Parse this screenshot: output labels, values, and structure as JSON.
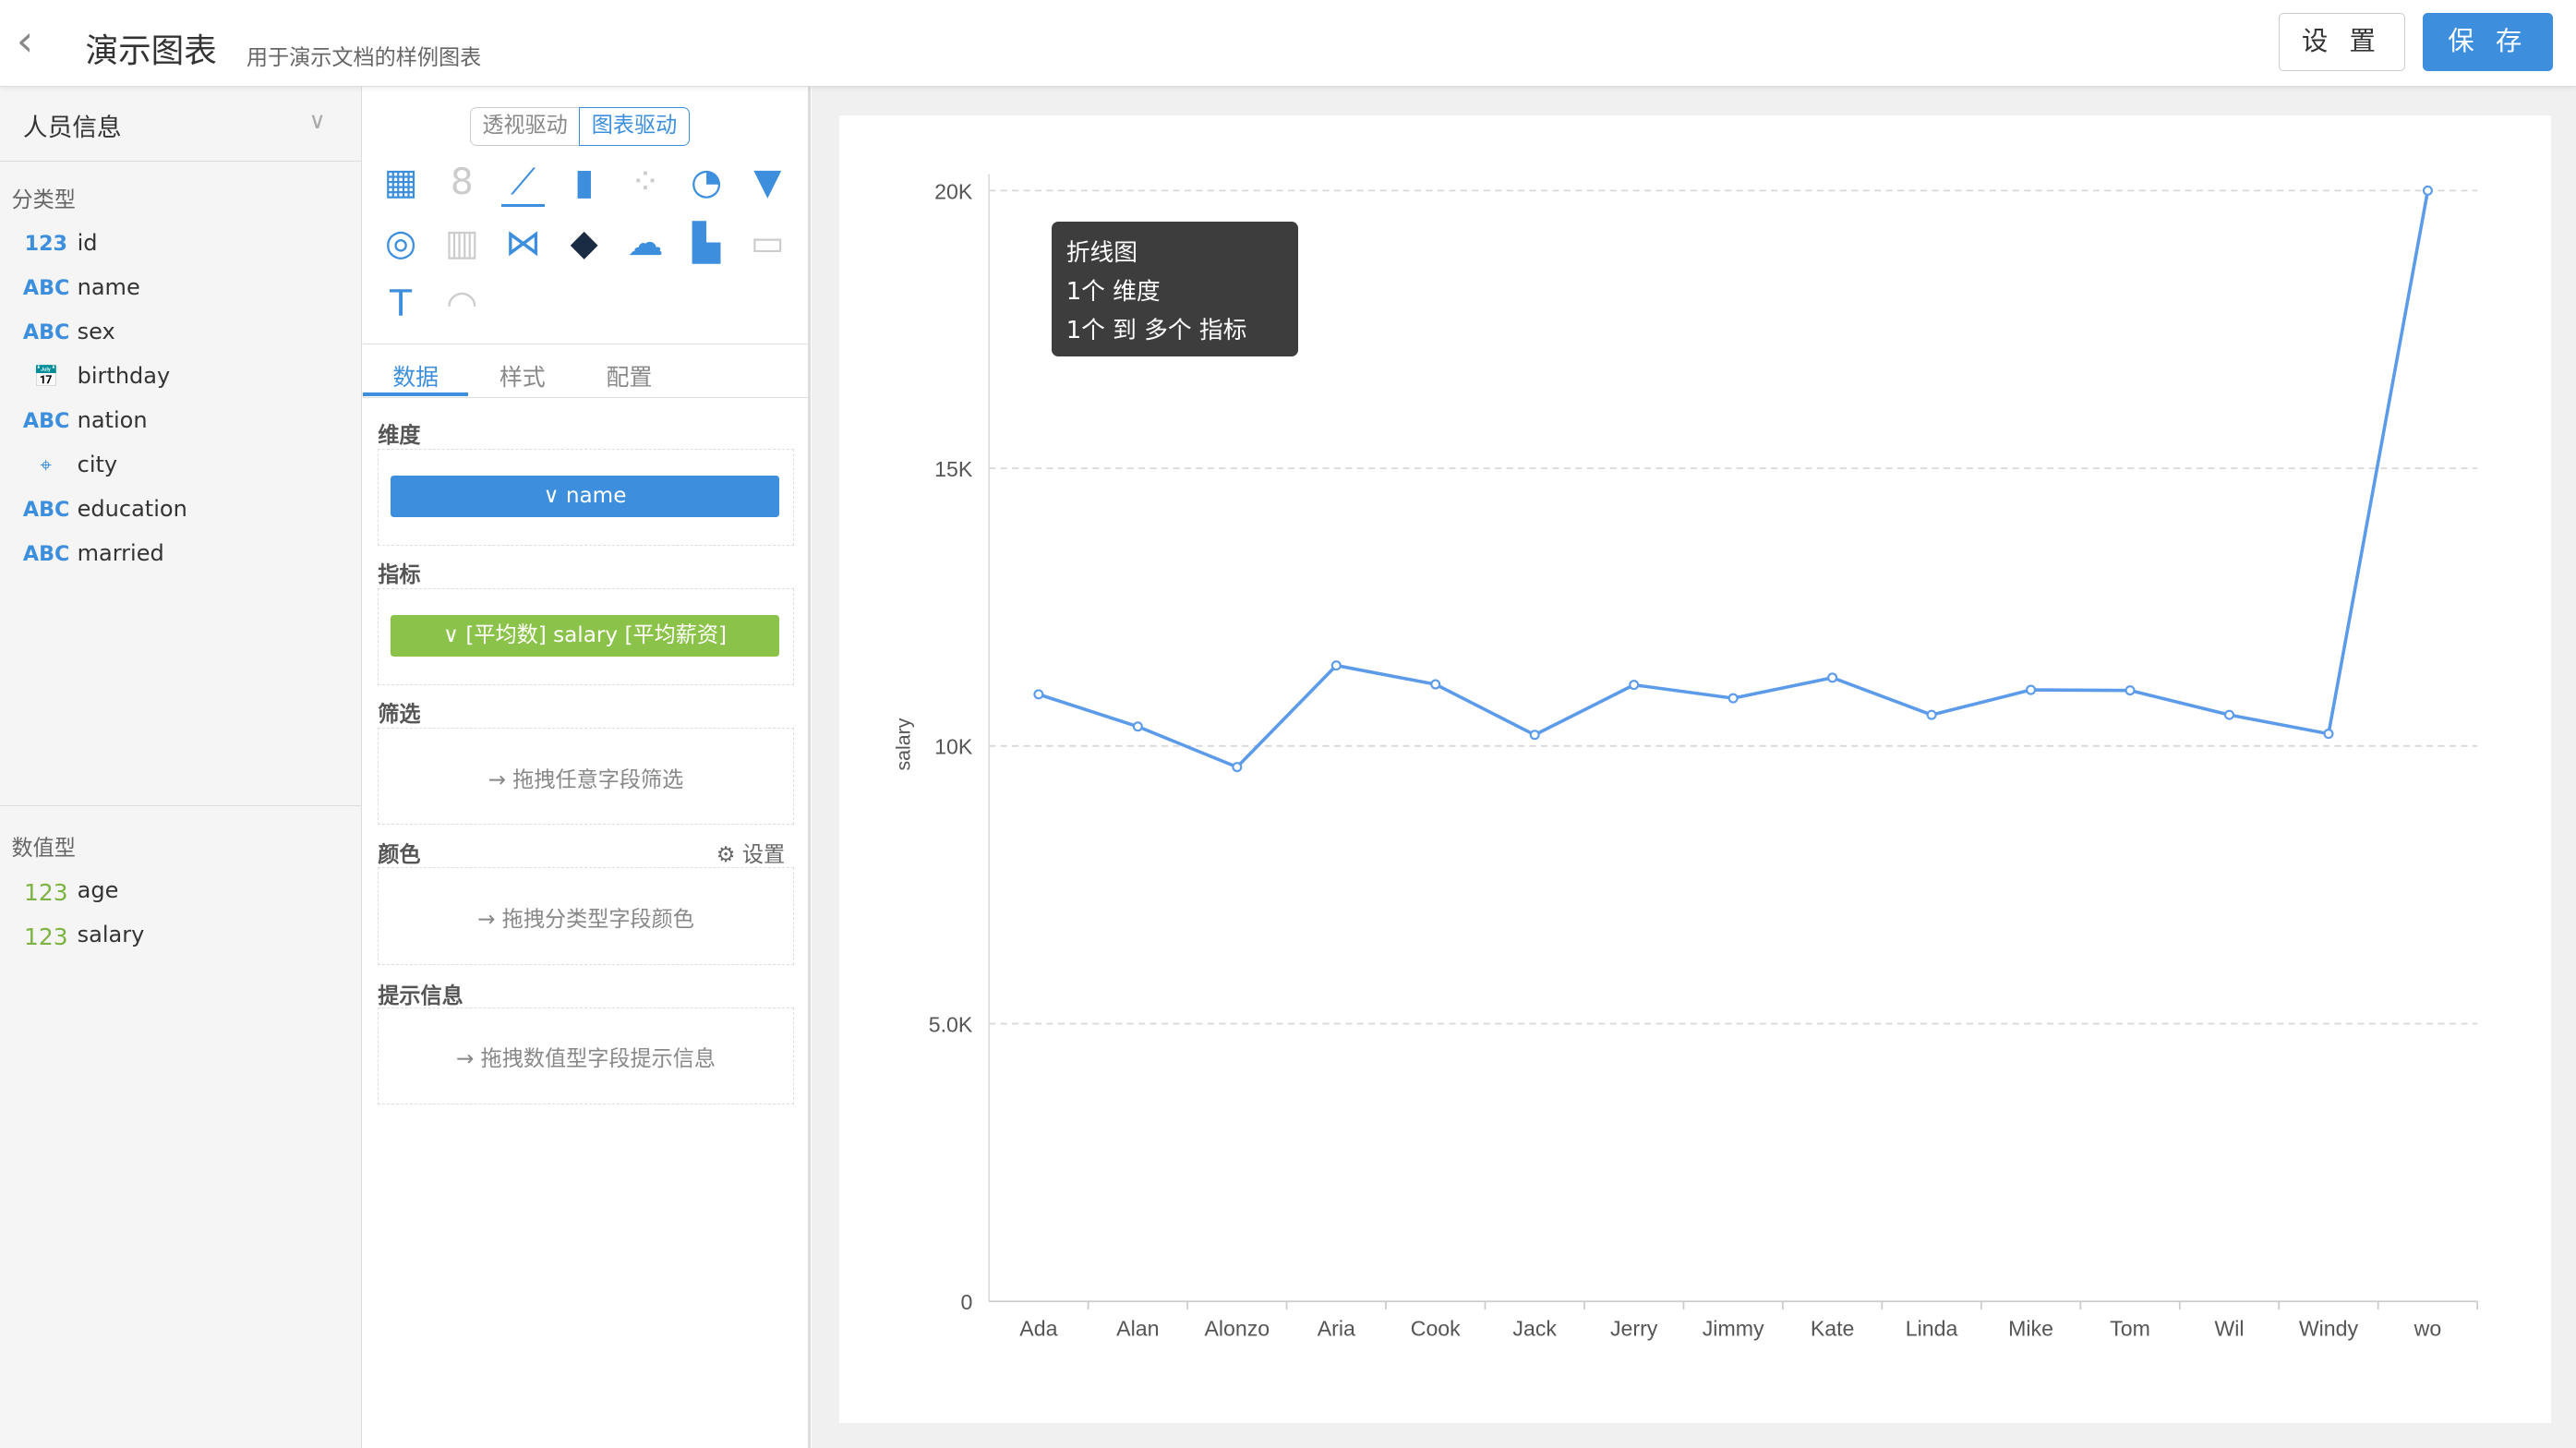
{
  "header": {
    "back_icon": "chevron-left-icon",
    "title": "演示图表",
    "subtitle": "用于演示文档的样例图表",
    "settings_label": "设 置",
    "save_label": "保 存"
  },
  "fields_panel": {
    "dataset": "人员信息",
    "categorical_title": "分类型",
    "categorical": [
      {
        "type": "123",
        "name": "id"
      },
      {
        "type": "ABC",
        "name": "name"
      },
      {
        "type": "ABC",
        "name": "sex"
      },
      {
        "type": "calendar-icon",
        "name": "birthday"
      },
      {
        "type": "ABC",
        "name": "nation"
      },
      {
        "type": "map-pin-icon",
        "name": "city"
      },
      {
        "type": "ABC",
        "name": "education"
      },
      {
        "type": "ABC",
        "name": "married"
      }
    ],
    "numeric_title": "数值型",
    "numeric": [
      {
        "type": "123",
        "name": "age"
      },
      {
        "type": "123",
        "name": "salary"
      }
    ]
  },
  "config_panel": {
    "mode_pivot": "透视驱动",
    "mode_chart": "图表驱动",
    "active_mode": "图表驱动",
    "chart_types": [
      "table",
      "number-card",
      "line",
      "bar",
      "scatter",
      "pie",
      "funnel",
      "radar",
      "heatmap",
      "parallel",
      "china-map",
      "word-cloud",
      "waterfall",
      "iframe",
      "text",
      "gauge"
    ],
    "selected_chart_type": "line",
    "tooltip": {
      "title": "折线图",
      "line1": "1个 维度",
      "line2": "1个 到 多个 指标"
    },
    "tabs": [
      "数据",
      "样式",
      "配置"
    ],
    "active_tab": "数据",
    "dimension_label": "维度",
    "dimension_value": "name",
    "metric_label": "指标",
    "metric_value": "[平均数] salary [平均薪资]",
    "filter_label": "筛选",
    "filter_hint": "拖拽任意字段筛选",
    "color_label": "颜色",
    "color_settings": "设置",
    "color_hint": "拖拽分类型字段颜色",
    "tip_label": "提示信息",
    "tip_hint": "拖拽数值型字段提示信息"
  },
  "colors": {
    "accent": "#3d8fde",
    "metric": "#8bc34a",
    "line": "#5b9bea"
  },
  "chart_data": {
    "type": "line",
    "ylabel": "salary",
    "xlabel": "",
    "ylim": [
      0,
      20000
    ],
    "yticks": [
      0,
      5000,
      10000,
      15000,
      20000
    ],
    "ytick_labels": [
      "0",
      "5.0K",
      "10K",
      "15K",
      "20K"
    ],
    "grid": true,
    "categories": [
      "Ada",
      "Alan",
      "Alonzo",
      "Aria",
      "Cook",
      "Jack",
      "Jerry",
      "Jimmy",
      "Kate",
      "Linda",
      "Mike",
      "Tom",
      "Wil",
      "Windy",
      "wo"
    ],
    "series": [
      {
        "values": [
          10930,
          10350,
          9620,
          11450,
          11110,
          10200,
          11100,
          10860,
          11230,
          10560,
          11010,
          11000,
          10560,
          10220,
          20000
        ]
      }
    ]
  }
}
